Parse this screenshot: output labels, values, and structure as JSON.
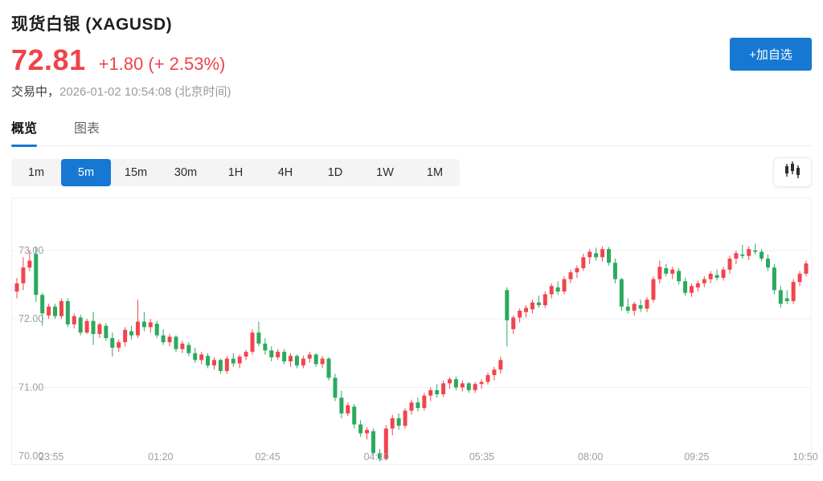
{
  "header": {
    "title": "现货白银 (XAGUSD)",
    "price": "72.81",
    "change": "+1.80 (+ 2.53%)",
    "status_label": "交易中，",
    "status_time": "2026-01-02 10:54:08 (北京时间)",
    "add_watchlist_label": "+加自选"
  },
  "tabs": [
    {
      "label": "概览",
      "active": true
    },
    {
      "label": "图表",
      "active": false
    }
  ],
  "timeframes": {
    "options": [
      "1m",
      "5m",
      "15m",
      "30m",
      "1H",
      "4H",
      "1D",
      "1W",
      "1M"
    ],
    "active": "5m"
  },
  "icons": {
    "chart_type": "candlestick-icon"
  },
  "colors": {
    "up": "#f1454d",
    "down": "#2baa5e",
    "accent_blue": "#1678d2",
    "price_red": "#f0424a",
    "grid": "#f1f1f1",
    "axis_text": "#9aa0a6"
  },
  "chart_data": {
    "type": "candlestick",
    "symbol": "XAGUSD",
    "interval": "5m",
    "ylim": [
      69.88,
      73.76
    ],
    "y_ticks": [
      {
        "label": "73.00",
        "price": 73.0,
        "line": true
      },
      {
        "label": "72.00",
        "price": 72.0,
        "line": true
      },
      {
        "label": "71.00",
        "price": 71.0,
        "line": true
      },
      {
        "label": "70.00",
        "price": 70.0,
        "line": false
      }
    ],
    "x_labels": [
      {
        "text": "23:55",
        "pos": 0.049
      },
      {
        "text": "01:20",
        "pos": 0.186
      },
      {
        "text": "02:45",
        "pos": 0.32
      },
      {
        "text": "04:10",
        "pos": 0.456
      },
      {
        "text": "05:35",
        "pos": 0.588
      },
      {
        "text": "08:00",
        "pos": 0.724
      },
      {
        "text": "09:25",
        "pos": 0.857
      },
      {
        "text": "10:50",
        "pos": 0.993
      }
    ],
    "candles": [
      [
        72.4,
        72.6,
        72.3,
        72.52
      ],
      [
        72.52,
        72.9,
        72.42,
        72.75
      ],
      [
        72.75,
        73.0,
        72.7,
        72.85
      ],
      [
        72.95,
        73.05,
        72.25,
        72.35
      ],
      [
        72.35,
        72.38,
        71.9,
        72.08
      ],
      [
        72.05,
        72.22,
        72.0,
        72.18
      ],
      [
        72.18,
        72.22,
        72.0,
        72.04
      ],
      [
        72.04,
        72.3,
        72.0,
        72.26
      ],
      [
        72.26,
        72.3,
        71.88,
        71.92
      ],
      [
        71.92,
        72.08,
        71.86,
        72.04
      ],
      [
        72.02,
        72.06,
        71.76,
        71.8
      ],
      [
        71.8,
        72.0,
        71.78,
        71.97
      ],
      [
        71.97,
        72.1,
        71.62,
        71.78
      ],
      [
        71.78,
        71.95,
        71.72,
        71.92
      ],
      [
        71.9,
        71.94,
        71.68,
        71.72
      ],
      [
        71.72,
        71.8,
        71.45,
        71.58
      ],
      [
        71.58,
        71.7,
        71.52,
        71.66
      ],
      [
        71.66,
        71.88,
        71.6,
        71.84
      ],
      [
        71.82,
        71.9,
        71.7,
        71.76
      ],
      [
        71.76,
        72.28,
        71.72,
        71.96
      ],
      [
        71.96,
        72.1,
        71.82,
        71.88
      ],
      [
        71.88,
        72.0,
        71.8,
        71.95
      ],
      [
        71.93,
        71.97,
        71.72,
        71.76
      ],
      [
        71.76,
        71.85,
        71.62,
        71.66
      ],
      [
        71.66,
        71.78,
        71.6,
        71.74
      ],
      [
        71.74,
        71.76,
        71.52,
        71.56
      ],
      [
        71.56,
        71.68,
        71.5,
        71.64
      ],
      [
        71.62,
        71.66,
        71.46,
        71.5
      ],
      [
        71.5,
        71.58,
        71.36,
        71.4
      ],
      [
        71.4,
        71.52,
        71.34,
        71.48
      ],
      [
        71.46,
        71.5,
        71.28,
        71.32
      ],
      [
        71.32,
        71.44,
        71.26,
        71.4
      ],
      [
        71.4,
        71.42,
        71.2,
        71.24
      ],
      [
        71.24,
        71.46,
        71.2,
        71.42
      ],
      [
        71.42,
        71.5,
        71.3,
        71.35
      ],
      [
        71.35,
        71.48,
        71.28,
        71.45
      ],
      [
        71.45,
        71.55,
        71.4,
        71.52
      ],
      [
        71.52,
        71.85,
        71.48,
        71.8
      ],
      [
        71.8,
        71.96,
        71.6,
        71.64
      ],
      [
        71.64,
        71.72,
        71.48,
        71.54
      ],
      [
        71.54,
        71.6,
        71.38,
        71.44
      ],
      [
        71.44,
        71.56,
        71.4,
        71.52
      ],
      [
        71.52,
        71.56,
        71.34,
        71.38
      ],
      [
        71.38,
        71.5,
        71.3,
        71.46
      ],
      [
        71.46,
        71.48,
        71.28,
        71.32
      ],
      [
        71.32,
        71.46,
        71.28,
        71.42
      ],
      [
        71.42,
        71.52,
        71.36,
        71.48
      ],
      [
        71.48,
        71.5,
        71.3,
        71.34
      ],
      [
        71.34,
        71.46,
        71.28,
        71.42
      ],
      [
        71.42,
        71.44,
        71.1,
        71.14
      ],
      [
        71.14,
        71.2,
        70.8,
        70.85
      ],
      [
        70.85,
        70.95,
        70.55,
        70.62
      ],
      [
        70.62,
        70.78,
        70.58,
        70.74
      ],
      [
        70.72,
        70.76,
        70.4,
        70.46
      ],
      [
        70.46,
        70.52,
        70.28,
        70.33
      ],
      [
        70.33,
        70.42,
        70.24,
        70.38
      ],
      [
        70.36,
        70.4,
        69.98,
        70.04
      ],
      [
        70.04,
        70.1,
        69.92,
        69.96
      ],
      [
        69.96,
        70.45,
        69.94,
        70.4
      ],
      [
        70.4,
        70.6,
        70.3,
        70.55
      ],
      [
        70.55,
        70.62,
        70.38,
        70.44
      ],
      [
        70.44,
        70.7,
        70.4,
        70.66
      ],
      [
        70.66,
        70.82,
        70.6,
        70.78
      ],
      [
        70.78,
        70.85,
        70.65,
        70.7
      ],
      [
        70.7,
        70.92,
        70.66,
        70.88
      ],
      [
        70.88,
        71.0,
        70.8,
        70.96
      ],
      [
        70.96,
        71.05,
        70.85,
        70.9
      ],
      [
        70.9,
        71.1,
        70.86,
        71.06
      ],
      [
        71.06,
        71.15,
        70.98,
        71.12
      ],
      [
        71.12,
        71.16,
        70.96,
        71.0
      ],
      [
        71.0,
        71.1,
        70.94,
        71.06
      ],
      [
        71.06,
        71.08,
        70.92,
        70.96
      ],
      [
        70.96,
        71.08,
        70.92,
        71.05
      ],
      [
        71.05,
        71.12,
        70.98,
        71.08
      ],
      [
        71.08,
        71.22,
        71.04,
        71.18
      ],
      [
        71.18,
        71.3,
        71.1,
        71.26
      ],
      [
        71.26,
        71.45,
        71.2,
        71.4
      ],
      [
        72.42,
        72.46,
        71.6,
        71.98
      ],
      [
        71.85,
        72.05,
        71.78,
        72.02
      ],
      [
        72.02,
        72.15,
        71.95,
        72.12
      ],
      [
        72.1,
        72.2,
        72.02,
        72.16
      ],
      [
        72.14,
        72.28,
        72.08,
        72.24
      ],
      [
        72.24,
        72.34,
        72.16,
        72.2
      ],
      [
        72.2,
        72.4,
        72.16,
        72.36
      ],
      [
        72.36,
        72.52,
        72.3,
        72.48
      ],
      [
        72.46,
        72.55,
        72.35,
        72.4
      ],
      [
        72.4,
        72.62,
        72.36,
        72.58
      ],
      [
        72.58,
        72.72,
        72.52,
        72.68
      ],
      [
        72.68,
        72.78,
        72.6,
        72.74
      ],
      [
        72.74,
        72.95,
        72.7,
        72.9
      ],
      [
        72.9,
        73.02,
        72.8,
        72.98
      ],
      [
        72.96,
        73.04,
        72.85,
        72.9
      ],
      [
        72.9,
        73.06,
        72.84,
        73.02
      ],
      [
        73.02,
        73.05,
        72.78,
        72.82
      ],
      [
        72.82,
        72.88,
        72.52,
        72.58
      ],
      [
        72.58,
        72.6,
        72.12,
        72.18
      ],
      [
        72.18,
        72.3,
        72.08,
        72.12
      ],
      [
        72.12,
        72.25,
        72.05,
        72.22
      ],
      [
        72.2,
        72.28,
        72.1,
        72.15
      ],
      [
        72.15,
        72.32,
        72.1,
        72.28
      ],
      [
        72.28,
        72.62,
        72.24,
        72.58
      ],
      [
        72.58,
        72.85,
        72.52,
        72.76
      ],
      [
        72.74,
        72.8,
        72.62,
        72.66
      ],
      [
        72.66,
        72.76,
        72.58,
        72.72
      ],
      [
        72.7,
        72.74,
        72.5,
        72.55
      ],
      [
        72.55,
        72.6,
        72.34,
        72.38
      ],
      [
        72.38,
        72.52,
        72.32,
        72.48
      ],
      [
        72.46,
        72.56,
        72.4,
        72.52
      ],
      [
        72.52,
        72.62,
        72.46,
        72.58
      ],
      [
        72.58,
        72.7,
        72.52,
        72.66
      ],
      [
        72.64,
        72.72,
        72.56,
        72.6
      ],
      [
        72.6,
        72.76,
        72.56,
        72.72
      ],
      [
        72.72,
        72.92,
        72.66,
        72.88
      ],
      [
        72.88,
        73.0,
        72.8,
        72.96
      ],
      [
        72.94,
        73.08,
        72.88,
        72.92
      ],
      [
        72.92,
        73.06,
        72.86,
        73.02
      ],
      [
        73.0,
        73.1,
        72.94,
        72.98
      ],
      [
        72.98,
        73.02,
        72.84,
        72.88
      ],
      [
        72.88,
        72.94,
        72.7,
        72.75
      ],
      [
        72.75,
        72.8,
        72.36,
        72.42
      ],
      [
        72.42,
        72.48,
        72.16,
        72.22
      ],
      [
        72.3,
        72.42,
        72.22,
        72.26
      ],
      [
        72.26,
        72.58,
        72.22,
        72.54
      ],
      [
        72.54,
        72.7,
        72.48,
        72.66
      ],
      [
        72.66,
        72.85,
        72.62,
        72.81
      ]
    ]
  }
}
